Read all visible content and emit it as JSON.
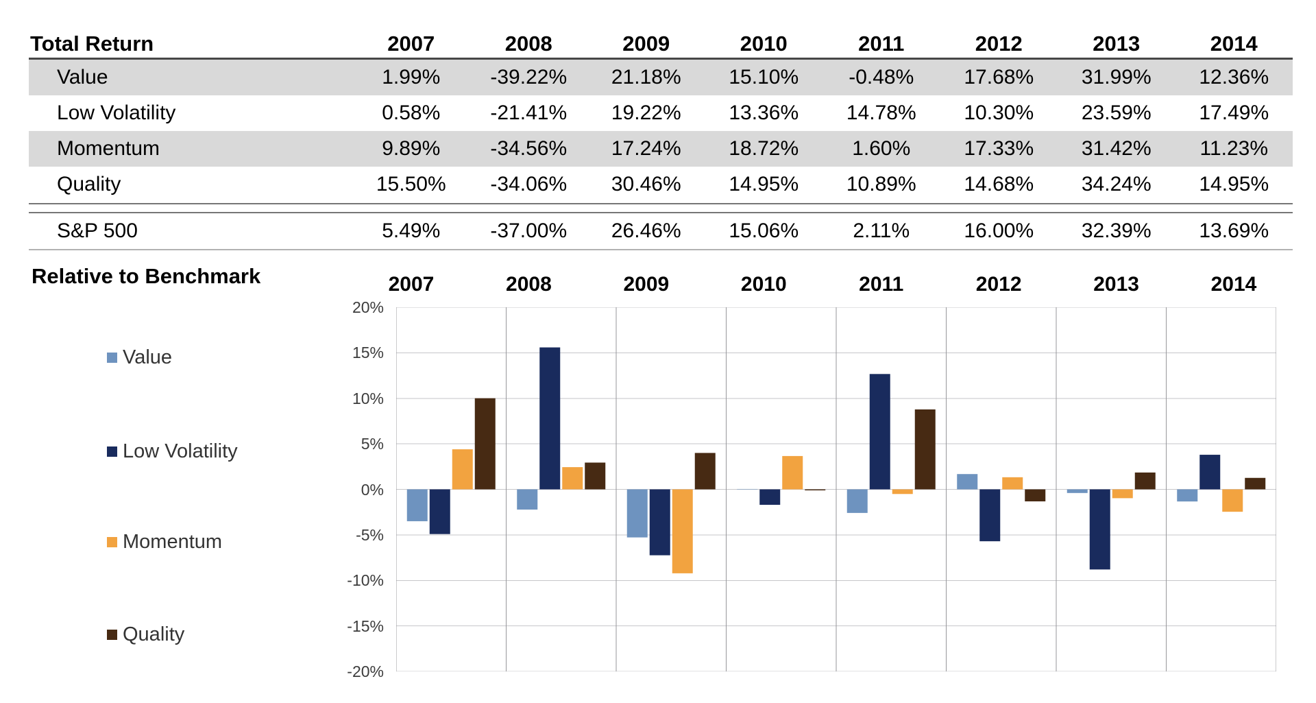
{
  "table": {
    "title": "Total Return",
    "years": [
      "2007",
      "2008",
      "2009",
      "2010",
      "2011",
      "2012",
      "2013",
      "2014"
    ],
    "rows": [
      {
        "label": "Value",
        "values": [
          "1.99%",
          "-39.22%",
          "21.18%",
          "15.10%",
          "-0.48%",
          "17.68%",
          "31.99%",
          "12.36%"
        ]
      },
      {
        "label": "Low Volatility",
        "values": [
          "0.58%",
          "-21.41%",
          "19.22%",
          "13.36%",
          "14.78%",
          "10.30%",
          "23.59%",
          "17.49%"
        ]
      },
      {
        "label": "Momentum",
        "values": [
          "9.89%",
          "-34.56%",
          "17.24%",
          "18.72%",
          "1.60%",
          "17.33%",
          "31.42%",
          "11.23%"
        ]
      },
      {
        "label": "Quality",
        "values": [
          "15.50%",
          "-34.06%",
          "30.46%",
          "14.95%",
          "10.89%",
          "14.68%",
          "34.24%",
          "14.95%"
        ]
      }
    ],
    "benchmark": {
      "label": "S&P 500",
      "values": [
        "5.49%",
        "-37.00%",
        "26.46%",
        "15.06%",
        "2.11%",
        "16.00%",
        "32.39%",
        "13.69%"
      ]
    },
    "stripe_color": "#d9d9d9"
  },
  "chart_data": {
    "type": "bar",
    "title": "Relative to Benchmark",
    "categories": [
      "2007",
      "2008",
      "2009",
      "2010",
      "2011",
      "2012",
      "2013",
      "2014"
    ],
    "series": [
      {
        "name": "Value",
        "color": "#6E93BF",
        "values": [
          -3.5,
          -2.22,
          -5.28,
          0.04,
          -2.59,
          1.68,
          -0.4,
          -1.33
        ]
      },
      {
        "name": "Low Volatility",
        "color": "#192B5D",
        "values": [
          -4.91,
          15.59,
          -7.24,
          -1.7,
          12.67,
          -5.7,
          -8.8,
          3.8
        ]
      },
      {
        "name": "Momentum",
        "color": "#F2A340",
        "values": [
          4.4,
          2.44,
          -9.22,
          3.66,
          -0.51,
          1.33,
          -0.97,
          -2.46
        ]
      },
      {
        "name": "Quality",
        "color": "#472A13",
        "values": [
          10.01,
          2.94,
          4.0,
          -0.11,
          8.78,
          -1.32,
          1.85,
          1.26
        ]
      }
    ],
    "ylim": [
      -20,
      20
    ],
    "ytick_step": 5,
    "ytick_labels": [
      "20%",
      "15%",
      "10%",
      "5%",
      "0%",
      "-5%",
      "-10%",
      "-15%",
      "-20%"
    ],
    "grid": true,
    "legend_position": "left",
    "gridline_color": "#c6c6ca",
    "panel_border_color": "#97979b"
  }
}
